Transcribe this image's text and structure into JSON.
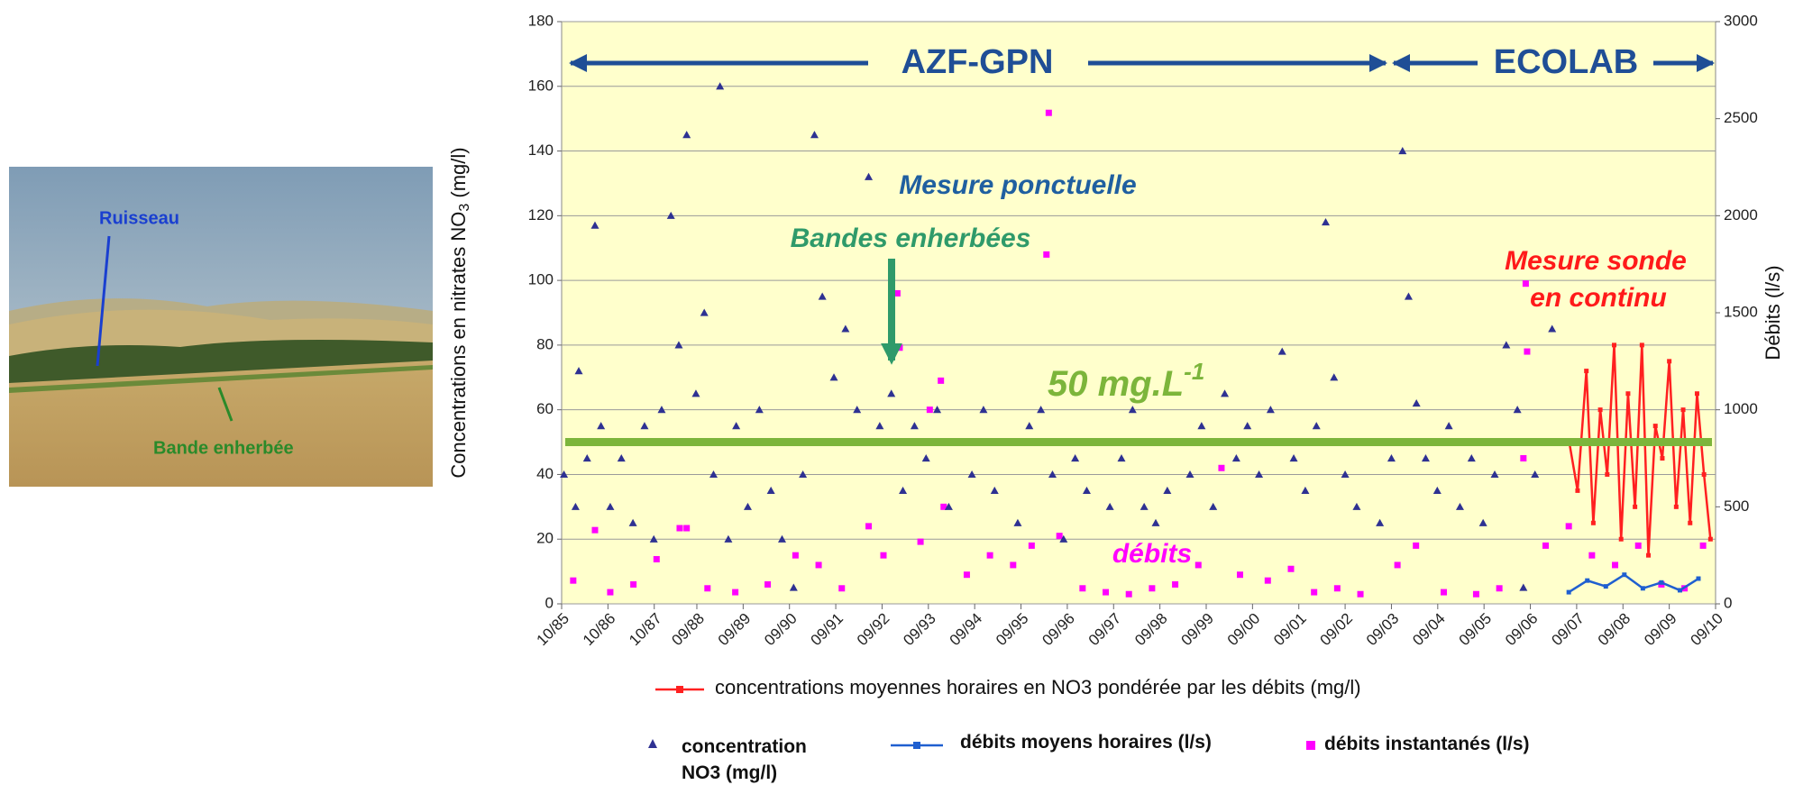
{
  "photo": {
    "labels": [
      "Ruisseau",
      "Bande enherbée"
    ]
  },
  "chart_data": {
    "type": "scatter",
    "y_label": {
      "main": "Concentrations  en nitrates NO",
      "sub": "3",
      "unit": " (mg/l)"
    },
    "y2_label": "Débits (l/s)",
    "regions": [
      "AZF-GPN",
      "ECOLAB"
    ],
    "annotations": [
      "Mesure ponctuelle",
      "Bandes enherbées",
      "Mesure sonde",
      "en continu",
      "débits"
    ],
    "threshold": 50,
    "threshold_color": "#7cb53b",
    "threshold_label": {
      "text": "50 mg.L",
      "sup": "-1"
    },
    "background": "#ffffcc",
    "grid": true,
    "xlim": [
      1985.75,
      2010.67
    ],
    "xticks": [
      {
        "value": 1985.75,
        "label": "10/85"
      },
      {
        "value": 1986.75,
        "label": "10/86"
      },
      {
        "value": 1987.75,
        "label": "10/87"
      },
      {
        "value": 1988.67,
        "label": "09/88"
      },
      {
        "value": 1989.67,
        "label": "09/89"
      },
      {
        "value": 1990.67,
        "label": "09/90"
      },
      {
        "value": 1991.67,
        "label": "09/91"
      },
      {
        "value": 1992.67,
        "label": "09/92"
      },
      {
        "value": 1993.67,
        "label": "09/93"
      },
      {
        "value": 1994.67,
        "label": "09/94"
      },
      {
        "value": 1995.67,
        "label": "09/95"
      },
      {
        "value": 1996.67,
        "label": "09/96"
      },
      {
        "value": 1997.67,
        "label": "09/97"
      },
      {
        "value": 1998.67,
        "label": "09/98"
      },
      {
        "value": 1999.67,
        "label": "09/99"
      },
      {
        "value": 2000.67,
        "label": "09/00"
      },
      {
        "value": 2001.67,
        "label": "09/01"
      },
      {
        "value": 2002.67,
        "label": "09/02"
      },
      {
        "value": 2003.67,
        "label": "09/03"
      },
      {
        "value": 2004.67,
        "label": "09/04"
      },
      {
        "value": 2005.67,
        "label": "09/05"
      },
      {
        "value": 2006.67,
        "label": "09/06"
      },
      {
        "value": 2007.67,
        "label": "09/07"
      },
      {
        "value": 2008.67,
        "label": "09/08"
      },
      {
        "value": 2009.67,
        "label": "09/09"
      },
      {
        "value": 2010.67,
        "label": "09/10"
      }
    ],
    "ylim": [
      0,
      180
    ],
    "yticks": [
      0,
      20,
      40,
      60,
      80,
      100,
      120,
      140,
      160,
      180
    ],
    "y2lim": [
      0,
      3000
    ],
    "y2ticks": [
      0,
      500,
      1000,
      1500,
      2000,
      2500,
      3000
    ],
    "series": [
      {
        "name": "concentration NO3 (mg/l)",
        "color": "#2e3192",
        "marker": "triangle",
        "axis": "y",
        "x": [
          1985.8,
          1986.05,
          1986.12,
          1986.3,
          1986.47,
          1986.6,
          1986.8,
          1987.04,
          1987.29,
          1987.54,
          1987.74,
          1987.91,
          1988.11,
          1988.28,
          1988.45,
          1988.65,
          1988.83,
          1989.03,
          1989.17,
          1989.35,
          1989.52,
          1989.77,
          1990.02,
          1990.27,
          1990.51,
          1990.76,
          1990.96,
          1991.21,
          1991.38,
          1991.63,
          1991.88,
          1992.13,
          1992.38,
          1992.62,
          1992.87,
          1993.12,
          1993.37,
          1993.62,
          1993.86,
          1994.11,
          1994.36,
          1994.61,
          1994.86,
          1995.1,
          1995.35,
          1995.6,
          1995.85,
          1996.1,
          1996.35,
          1996.59,
          1996.84,
          1997.09,
          1997.34,
          1997.59,
          1997.84,
          1998.08,
          1998.33,
          1998.58,
          1998.83,
          1999.08,
          1999.32,
          1999.57,
          1999.82,
          2000.07,
          2000.32,
          2000.56,
          2000.81,
          2001.06,
          2001.31,
          2001.56,
          2001.81,
          2002.05,
          2002.25,
          2002.43,
          2002.67,
          2002.92,
          2003.17,
          2003.42,
          2003.67,
          2003.91,
          2004.04,
          2004.21,
          2004.41,
          2004.66,
          2004.91,
          2005.15,
          2005.4,
          2005.65,
          2005.9,
          2006.15,
          2006.39,
          2006.52,
          2006.77,
          2007.14,
          2007.39
        ],
        "values": [
          40,
          30,
          72,
          45,
          117,
          55,
          30,
          45,
          25,
          55,
          20,
          60,
          120,
          80,
          145,
          65,
          90,
          40,
          160,
          20,
          55,
          30,
          60,
          35,
          20,
          5,
          40,
          145,
          95,
          70,
          85,
          60,
          132,
          55,
          65,
          35,
          55,
          45,
          60,
          30,
          50,
          40,
          60,
          35,
          50,
          25,
          55,
          60,
          40,
          20,
          45,
          35,
          50,
          30,
          45,
          60,
          30,
          25,
          35,
          50,
          40,
          55,
          30,
          65,
          45,
          55,
          40,
          60,
          78,
          45,
          35,
          55,
          118,
          70,
          40,
          30,
          50,
          25,
          45,
          140,
          95,
          62,
          45,
          35,
          55,
          30,
          45,
          25,
          40,
          80,
          60,
          5,
          40,
          85,
          50
        ]
      },
      {
        "name": "débits moyens horaires (l/s)",
        "color": "#1f5fd0",
        "marker": "line",
        "axis": "y2",
        "x": [
          2007.5,
          2007.9,
          2008.3,
          2008.7,
          2009.1,
          2009.5,
          2009.9,
          2010.3
        ],
        "values": [
          60,
          120,
          90,
          150,
          80,
          110,
          70,
          130
        ]
      },
      {
        "name": "débits instantanés (l/s)",
        "color": "#ff00ff",
        "marker": "square",
        "axis": "y2",
        "x": [
          1986.0,
          1986.47,
          1986.8,
          1987.3,
          1987.8,
          1988.3,
          1988.45,
          1988.9,
          1989.5,
          1990.2,
          1990.8,
          1991.3,
          1991.8,
          1992.38,
          1992.7,
          1993.0,
          1993.05,
          1993.5,
          1993.7,
          1993.94,
          1994.0,
          1994.5,
          1995.0,
          1995.5,
          1995.9,
          1996.22,
          1996.27,
          1996.5,
          1997.0,
          1997.5,
          1998.0,
          1998.5,
          1999.0,
          1999.5,
          2000.0,
          2000.4,
          2001.0,
          2001.5,
          2002.0,
          2002.5,
          2003.0,
          2003.8,
          2004.2,
          2004.8,
          2005.5,
          2006.0,
          2006.52,
          2006.57,
          2006.6,
          2007.0,
          2007.5,
          2008.0,
          2008.5,
          2009.0,
          2009.5,
          2010.0,
          2010.4
        ],
        "values": [
          120,
          380,
          60,
          100,
          230,
          390,
          390,
          80,
          60,
          100,
          250,
          200,
          80,
          400,
          250,
          1600,
          1320,
          320,
          1000,
          1150,
          500,
          150,
          250,
          200,
          300,
          1800,
          2530,
          350,
          80,
          60,
          50,
          80,
          100,
          200,
          700,
          150,
          120,
          180,
          60,
          80,
          50,
          200,
          300,
          60,
          50,
          80,
          750,
          1650,
          1300,
          300,
          400,
          250,
          200,
          300,
          100,
          80,
          300
        ]
      },
      {
        "name": "concentrations moyennes horaires en NO3 pondérée par les débits (mg/l)",
        "color": "#ff2020",
        "marker": "line",
        "axis": "y",
        "x": [
          2007.51,
          2007.69,
          2007.88,
          2008.03,
          2008.18,
          2008.33,
          2008.48,
          2008.63,
          2008.78,
          2008.93,
          2009.08,
          2009.22,
          2009.37,
          2009.52,
          2009.67,
          2009.82,
          2009.97,
          2010.12,
          2010.27,
          2010.42,
          2010.56
        ],
        "values": [
          50,
          35,
          72,
          25,
          60,
          40,
          80,
          20,
          65,
          30,
          80,
          15,
          55,
          45,
          75,
          30,
          60,
          25,
          65,
          40,
          20
        ]
      }
    ]
  }
}
